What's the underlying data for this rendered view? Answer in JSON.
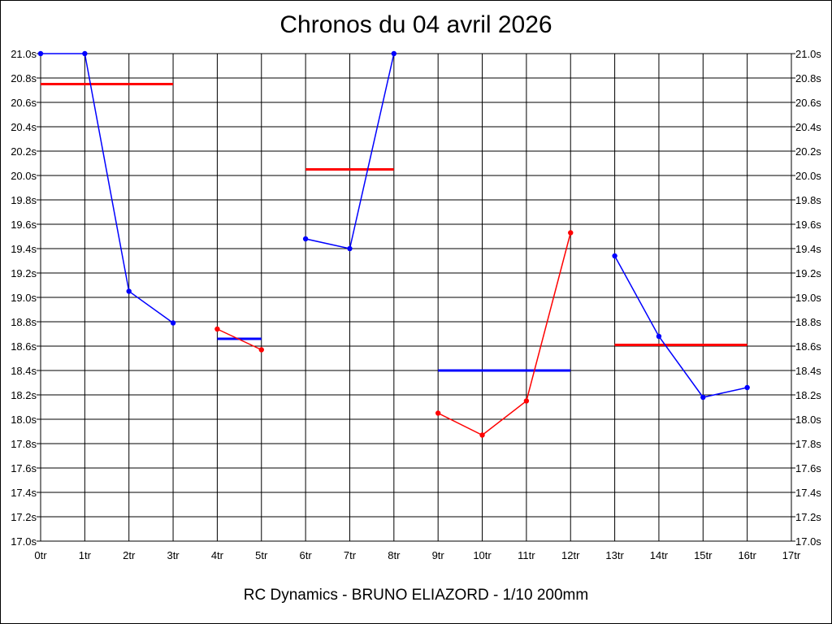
{
  "chart_data": {
    "type": "line",
    "title": "Chronos du 04 avril 2026",
    "footer": "RC Dynamics - BRUNO ELIAZORD - 1/10 200mm",
    "xlabel": "",
    "ylabel": "",
    "xlim": [
      0,
      17
    ],
    "ylim": [
      17.0,
      21.0
    ],
    "x_ticks": [
      "0tr",
      "1tr",
      "2tr",
      "3tr",
      "4tr",
      "5tr",
      "6tr",
      "7tr",
      "8tr",
      "9tr",
      "10tr",
      "11tr",
      "12tr",
      "13tr",
      "14tr",
      "15tr",
      "16tr",
      "17tr"
    ],
    "y_ticks": [
      "17.0s",
      "17.2s",
      "17.4s",
      "17.6s",
      "17.8s",
      "18.0s",
      "18.2s",
      "18.4s",
      "18.6s",
      "18.8s",
      "19.0s",
      "19.2s",
      "19.4s",
      "19.6s",
      "19.8s",
      "20.0s",
      "20.2s",
      "20.4s",
      "20.6s",
      "20.8s",
      "21.0s"
    ],
    "grid": true,
    "segments": [
      {
        "color": "#0000ff",
        "points": [
          [
            0,
            21.0
          ],
          [
            1,
            21.0
          ],
          [
            2,
            19.05
          ],
          [
            3,
            18.79
          ]
        ],
        "average": {
          "value": 20.75,
          "x_range": [
            0,
            3
          ],
          "color": "#ff0000"
        }
      },
      {
        "color": "#ff0000",
        "points": [
          [
            4,
            18.74
          ],
          [
            5,
            18.57
          ]
        ],
        "average": {
          "value": 18.66,
          "x_range": [
            4,
            5
          ],
          "color": "#0000ff"
        }
      },
      {
        "color": "#0000ff",
        "points": [
          [
            6,
            19.48
          ],
          [
            7,
            19.4
          ],
          [
            8,
            21.0
          ]
        ],
        "average": {
          "value": 20.05,
          "x_range": [
            6,
            8
          ],
          "color": "#ff0000"
        }
      },
      {
        "color": "#ff0000",
        "points": [
          [
            9,
            18.05
          ],
          [
            10,
            17.87
          ],
          [
            11,
            18.15
          ],
          [
            12,
            19.53
          ]
        ],
        "average": {
          "value": 18.4,
          "x_range": [
            9,
            12
          ],
          "color": "#0000ff"
        }
      },
      {
        "color": "#0000ff",
        "points": [
          [
            13,
            19.34
          ],
          [
            14,
            18.68
          ],
          [
            15,
            18.18
          ],
          [
            16,
            18.26
          ]
        ],
        "average": {
          "value": 18.61,
          "x_range": [
            13,
            16
          ],
          "color": "#ff0000"
        }
      }
    ]
  }
}
